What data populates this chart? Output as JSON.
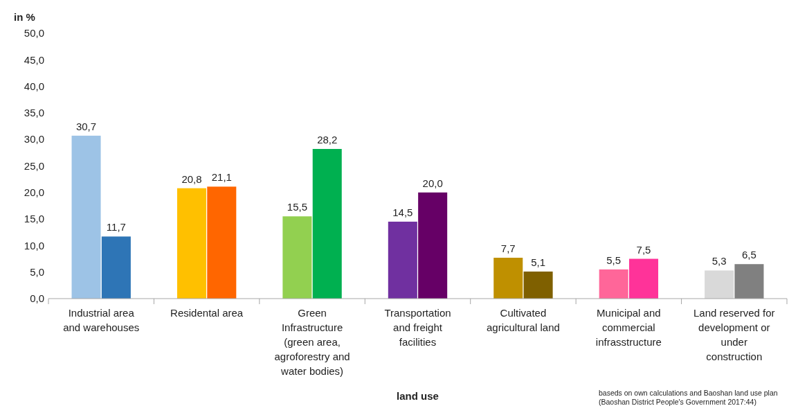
{
  "chart_data": {
    "type": "bar",
    "ylabel": "in %",
    "xlabel": "land use",
    "categories": [
      "Industrial area\nand warehouses",
      "Residental area",
      "Green\nInfrastructure\n(green area,\nagroforestry and\nwater bodies)",
      "Transportation\nand freight\nfacilities",
      "Cultivated\nagricultural land",
      "Municipal and\ncommercial\ninfrasstructure",
      "Land reserved for\ndevelopment or\nunder\nconstruction"
    ],
    "series": [
      {
        "colors": [
          "#9dc3e6",
          "#ffc000",
          "#92d050",
          "#7030a0",
          "#bf9000",
          "#ff6699",
          "#d9d9d9"
        ],
        "values": [
          30.7,
          20.8,
          15.5,
          14.5,
          7.7,
          5.5,
          5.3
        ],
        "value_labels": [
          "30,7",
          "20,8",
          "15,5",
          "14,5",
          "7,7",
          "5,5",
          "5,3"
        ]
      },
      {
        "colors": [
          "#2e75b6",
          "#ff6600",
          "#00b050",
          "#660066",
          "#7f6000",
          "#ff3399",
          "#808080"
        ],
        "values": [
          11.7,
          21.1,
          28.2,
          20.0,
          5.1,
          7.5,
          6.5
        ],
        "value_labels": [
          "11,7",
          "21,1",
          "28,2",
          "20,0",
          "5,1",
          "7,5",
          "6,5"
        ]
      }
    ],
    "ylim": [
      0,
      50
    ],
    "yticks": [
      {
        "value": 0,
        "label": "0,0"
      },
      {
        "value": 5,
        "label": "5,0"
      },
      {
        "value": 10,
        "label": "10,0"
      },
      {
        "value": 15,
        "label": "15,0"
      },
      {
        "value": 20,
        "label": "20,0"
      },
      {
        "value": 25,
        "label": "25,0"
      },
      {
        "value": 30,
        "label": "30,0"
      },
      {
        "value": 35,
        "label": "35,0"
      },
      {
        "value": 40,
        "label": "40,0"
      },
      {
        "value": 45,
        "label": "45,0"
      },
      {
        "value": 50,
        "label": "50,0"
      }
    ],
    "grid": false,
    "annotations": [
      "baseds on own calculations and Baoshan land use plan",
      "(Baoshan District People's Government 2017:44)"
    ]
  }
}
